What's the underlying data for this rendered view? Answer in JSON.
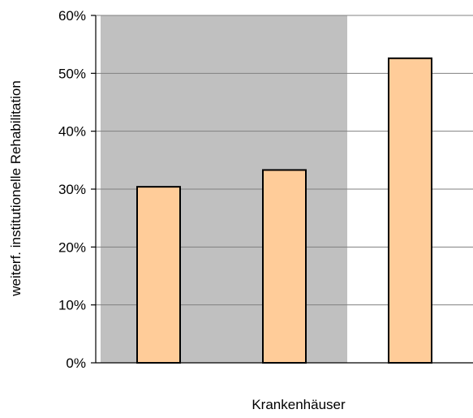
{
  "chart_data": {
    "type": "bar",
    "title": "",
    "xlabel": "Krankenhäuser",
    "ylabel": "weiterf. institutionelle Rehabilitation",
    "categories": [
      "",
      "",
      ""
    ],
    "values": [
      30.4,
      33.3,
      52.6
    ],
    "ylim": [
      0,
      60
    ],
    "yticks": [
      0,
      10,
      20,
      30,
      40,
      50,
      60
    ],
    "ytick_labels": [
      "0%",
      "10%",
      "20%",
      "30%",
      "40%",
      "50%",
      "60%"
    ],
    "grid": true,
    "highlight_region": {
      "from_category": 0,
      "to_category": 1,
      "color": "#c0c0c0"
    },
    "colors": {
      "bar_fill": "#ffcc99",
      "bar_stroke": "#000000",
      "grid": "#808080",
      "plot_bg": "#ffffff"
    }
  }
}
